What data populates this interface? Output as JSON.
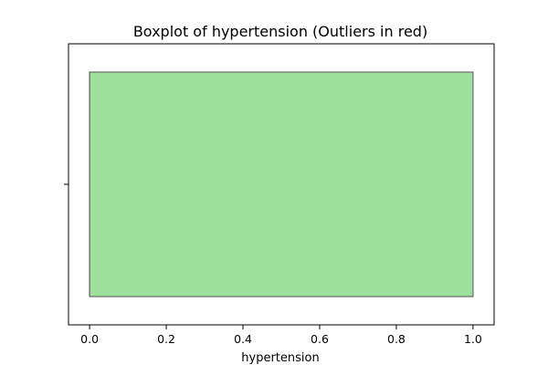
{
  "chart_data": {
    "type": "boxplot",
    "title": "Boxplot of hypertension (Outliers in red)",
    "xlabel": "hypertension",
    "ylabel": "",
    "xlim": [
      -0.055,
      1.055
    ],
    "x_ticks": [
      0.0,
      0.2,
      0.4,
      0.6,
      0.8,
      1.0
    ],
    "x_tick_labels": [
      "0.0",
      "0.2",
      "0.4",
      "0.6",
      "0.8",
      "1.0"
    ],
    "grid": false,
    "orientation": "horizontal",
    "box": {
      "min": 0.0,
      "q1": 0.0,
      "median": 0.0,
      "q3": 1.0,
      "max": 1.0,
      "outliers": []
    },
    "colors": {
      "box_fill": "#9de19d",
      "box_edge": "#6b6b6b",
      "outlier": "#ff0000"
    }
  }
}
